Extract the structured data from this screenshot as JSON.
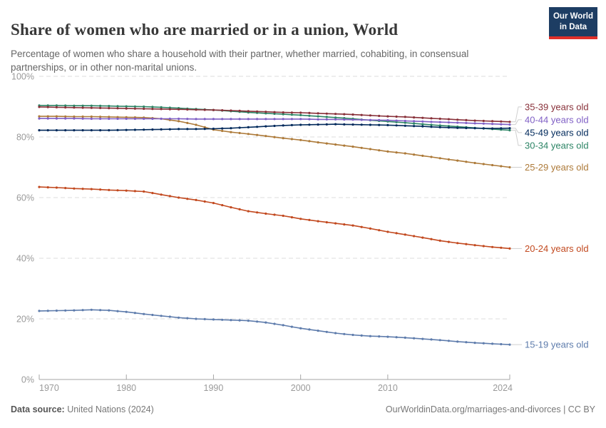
{
  "header": {
    "title": "Share of women who are married or in a union, World",
    "subtitle": "Percentage of women who share a household with their partner, whether married, cohabiting, in consensual partnerships, or in other non-marital unions.",
    "logo": {
      "line1": "Our World",
      "line2": "in Data",
      "bg_color": "#1d3d63",
      "accent_color": "#e0302a"
    }
  },
  "chart_data": {
    "type": "line",
    "title": "Share of women who are married or in a union, World",
    "xlabel": "",
    "ylabel": "",
    "ylim": [
      0,
      100
    ],
    "grid": "dashed-horizontal",
    "legend_position": "right",
    "yticks": [
      "0%",
      "20%",
      "40%",
      "60%",
      "80%",
      "100%"
    ],
    "xticks": [
      1970,
      1980,
      1990,
      2000,
      2010,
      2024
    ],
    "x": [
      1970,
      1972,
      1974,
      1976,
      1978,
      1980,
      1982,
      1984,
      1986,
      1988,
      1990,
      1992,
      1994,
      1996,
      1998,
      2000,
      2002,
      2004,
      2006,
      2008,
      2010,
      2012,
      2014,
      2016,
      2018,
      2020,
      2022,
      2024
    ],
    "series": [
      {
        "name": "35-39 years old",
        "color": "#883039",
        "values": [
          89.9,
          89.8,
          89.7,
          89.6,
          89.5,
          89.4,
          89.3,
          89.2,
          89.1,
          89.0,
          88.9,
          88.7,
          88.5,
          88.3,
          88.1,
          88.0,
          87.8,
          87.6,
          87.4,
          87.1,
          86.8,
          86.6,
          86.3,
          86.0,
          85.7,
          85.4,
          85.2,
          85.0
        ]
      },
      {
        "name": "40-44 years old",
        "color": "#7F5FC5",
        "values": [
          86.1,
          86.1,
          86.1,
          86.0,
          86.0,
          86.0,
          86.0,
          86.0,
          86.0,
          85.9,
          85.9,
          85.9,
          85.9,
          85.9,
          85.9,
          85.9,
          85.8,
          85.8,
          85.7,
          85.6,
          85.5,
          85.3,
          85.1,
          84.9,
          84.7,
          84.5,
          84.3,
          84.1
        ]
      },
      {
        "name": "45-49 years old",
        "color": "#00295B",
        "values": [
          82.2,
          82.2,
          82.2,
          82.2,
          82.2,
          82.3,
          82.4,
          82.5,
          82.6,
          82.6,
          82.7,
          82.9,
          83.2,
          83.5,
          83.8,
          84.0,
          84.1,
          84.2,
          84.1,
          84.0,
          83.9,
          83.7,
          83.5,
          83.2,
          83.0,
          82.9,
          82.8,
          82.9
        ]
      },
      {
        "name": "30-34 years old",
        "color": "#2C8465",
        "values": [
          90.4,
          90.4,
          90.3,
          90.3,
          90.2,
          90.1,
          90.0,
          89.8,
          89.5,
          89.2,
          88.9,
          88.5,
          88.1,
          87.8,
          87.5,
          87.2,
          86.8,
          86.4,
          86.0,
          85.5,
          85.1,
          84.7,
          84.2,
          83.8,
          83.4,
          83.0,
          82.6,
          82.2
        ]
      },
      {
        "name": "25-29 years old",
        "color": "#AD7A39",
        "values": [
          86.8,
          86.8,
          86.7,
          86.7,
          86.6,
          86.5,
          86.4,
          86.0,
          85.2,
          84.0,
          82.4,
          81.6,
          81.0,
          80.3,
          79.6,
          79.0,
          78.2,
          77.5,
          76.8,
          76.0,
          75.2,
          74.6,
          73.8,
          73.0,
          72.2,
          71.4,
          70.7,
          70.0
        ]
      },
      {
        "name": "20-24 years old",
        "color": "#C2491F",
        "values": [
          63.5,
          63.3,
          63.0,
          62.8,
          62.5,
          62.3,
          62.0,
          61.0,
          60.0,
          59.2,
          58.2,
          56.8,
          55.5,
          54.7,
          54.0,
          53.0,
          52.2,
          51.5,
          50.8,
          49.8,
          48.7,
          47.8,
          46.8,
          45.8,
          45.0,
          44.3,
          43.7,
          43.2
        ]
      },
      {
        "name": "15-19 years old",
        "color": "#5E7CAC",
        "values": [
          22.6,
          22.7,
          22.8,
          23.0,
          22.8,
          22.3,
          21.6,
          21.0,
          20.4,
          20.0,
          19.8,
          19.6,
          19.4,
          18.8,
          17.9,
          16.9,
          16.1,
          15.3,
          14.7,
          14.3,
          14.1,
          13.8,
          13.4,
          13.0,
          12.5,
          12.1,
          11.8,
          11.5
        ]
      }
    ]
  },
  "footer": {
    "source_label": "Data source:",
    "source_value": " United Nations (2024)",
    "link": "OurWorldinData.org/marriages-and-divorces | CC BY"
  }
}
